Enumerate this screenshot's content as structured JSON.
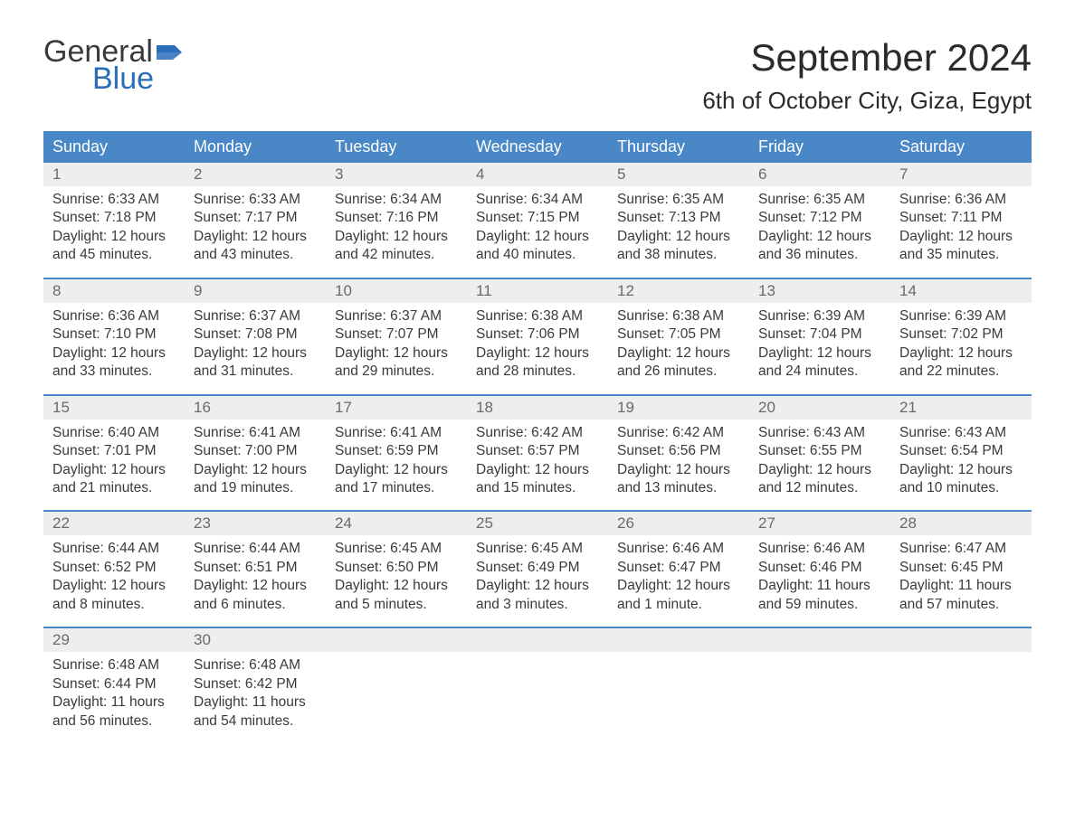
{
  "logo": {
    "word1": "General",
    "word2": "Blue",
    "flag_color": "#2a6db8"
  },
  "header": {
    "title": "September 2024",
    "subtitle": "6th of October City, Giza, Egypt"
  },
  "colors": {
    "header_bg": "#4a87c7",
    "header_text": "#ffffff",
    "week_border": "#4a87c7",
    "daynum_bg": "#eeeeee",
    "daynum_text": "#6a6a6a",
    "body_text": "#3a3a3a",
    "background": "#ffffff"
  },
  "day_labels": [
    "Sunday",
    "Monday",
    "Tuesday",
    "Wednesday",
    "Thursday",
    "Friday",
    "Saturday"
  ],
  "weeks": [
    [
      {
        "n": "1",
        "sunrise": "6:33 AM",
        "sunset": "7:18 PM",
        "daylight": "12 hours and 45 minutes."
      },
      {
        "n": "2",
        "sunrise": "6:33 AM",
        "sunset": "7:17 PM",
        "daylight": "12 hours and 43 minutes."
      },
      {
        "n": "3",
        "sunrise": "6:34 AM",
        "sunset": "7:16 PM",
        "daylight": "12 hours and 42 minutes."
      },
      {
        "n": "4",
        "sunrise": "6:34 AM",
        "sunset": "7:15 PM",
        "daylight": "12 hours and 40 minutes."
      },
      {
        "n": "5",
        "sunrise": "6:35 AM",
        "sunset": "7:13 PM",
        "daylight": "12 hours and 38 minutes."
      },
      {
        "n": "6",
        "sunrise": "6:35 AM",
        "sunset": "7:12 PM",
        "daylight": "12 hours and 36 minutes."
      },
      {
        "n": "7",
        "sunrise": "6:36 AM",
        "sunset": "7:11 PM",
        "daylight": "12 hours and 35 minutes."
      }
    ],
    [
      {
        "n": "8",
        "sunrise": "6:36 AM",
        "sunset": "7:10 PM",
        "daylight": "12 hours and 33 minutes."
      },
      {
        "n": "9",
        "sunrise": "6:37 AM",
        "sunset": "7:08 PM",
        "daylight": "12 hours and 31 minutes."
      },
      {
        "n": "10",
        "sunrise": "6:37 AM",
        "sunset": "7:07 PM",
        "daylight": "12 hours and 29 minutes."
      },
      {
        "n": "11",
        "sunrise": "6:38 AM",
        "sunset": "7:06 PM",
        "daylight": "12 hours and 28 minutes."
      },
      {
        "n": "12",
        "sunrise": "6:38 AM",
        "sunset": "7:05 PM",
        "daylight": "12 hours and 26 minutes."
      },
      {
        "n": "13",
        "sunrise": "6:39 AM",
        "sunset": "7:04 PM",
        "daylight": "12 hours and 24 minutes."
      },
      {
        "n": "14",
        "sunrise": "6:39 AM",
        "sunset": "7:02 PM",
        "daylight": "12 hours and 22 minutes."
      }
    ],
    [
      {
        "n": "15",
        "sunrise": "6:40 AM",
        "sunset": "7:01 PM",
        "daylight": "12 hours and 21 minutes."
      },
      {
        "n": "16",
        "sunrise": "6:41 AM",
        "sunset": "7:00 PM",
        "daylight": "12 hours and 19 minutes."
      },
      {
        "n": "17",
        "sunrise": "6:41 AM",
        "sunset": "6:59 PM",
        "daylight": "12 hours and 17 minutes."
      },
      {
        "n": "18",
        "sunrise": "6:42 AM",
        "sunset": "6:57 PM",
        "daylight": "12 hours and 15 minutes."
      },
      {
        "n": "19",
        "sunrise": "6:42 AM",
        "sunset": "6:56 PM",
        "daylight": "12 hours and 13 minutes."
      },
      {
        "n": "20",
        "sunrise": "6:43 AM",
        "sunset": "6:55 PM",
        "daylight": "12 hours and 12 minutes."
      },
      {
        "n": "21",
        "sunrise": "6:43 AM",
        "sunset": "6:54 PM",
        "daylight": "12 hours and 10 minutes."
      }
    ],
    [
      {
        "n": "22",
        "sunrise": "6:44 AM",
        "sunset": "6:52 PM",
        "daylight": "12 hours and 8 minutes."
      },
      {
        "n": "23",
        "sunrise": "6:44 AM",
        "sunset": "6:51 PM",
        "daylight": "12 hours and 6 minutes."
      },
      {
        "n": "24",
        "sunrise": "6:45 AM",
        "sunset": "6:50 PM",
        "daylight": "12 hours and 5 minutes."
      },
      {
        "n": "25",
        "sunrise": "6:45 AM",
        "sunset": "6:49 PM",
        "daylight": "12 hours and 3 minutes."
      },
      {
        "n": "26",
        "sunrise": "6:46 AM",
        "sunset": "6:47 PM",
        "daylight": "12 hours and 1 minute."
      },
      {
        "n": "27",
        "sunrise": "6:46 AM",
        "sunset": "6:46 PM",
        "daylight": "11 hours and 59 minutes."
      },
      {
        "n": "28",
        "sunrise": "6:47 AM",
        "sunset": "6:45 PM",
        "daylight": "11 hours and 57 minutes."
      }
    ],
    [
      {
        "n": "29",
        "sunrise": "6:48 AM",
        "sunset": "6:44 PM",
        "daylight": "11 hours and 56 minutes."
      },
      {
        "n": "30",
        "sunrise": "6:48 AM",
        "sunset": "6:42 PM",
        "daylight": "11 hours and 54 minutes."
      },
      {
        "empty": true
      },
      {
        "empty": true
      },
      {
        "empty": true
      },
      {
        "empty": true
      },
      {
        "empty": true
      }
    ]
  ],
  "labels": {
    "sunrise_prefix": "Sunrise: ",
    "sunset_prefix": "Sunset: ",
    "daylight_prefix": "Daylight: "
  }
}
